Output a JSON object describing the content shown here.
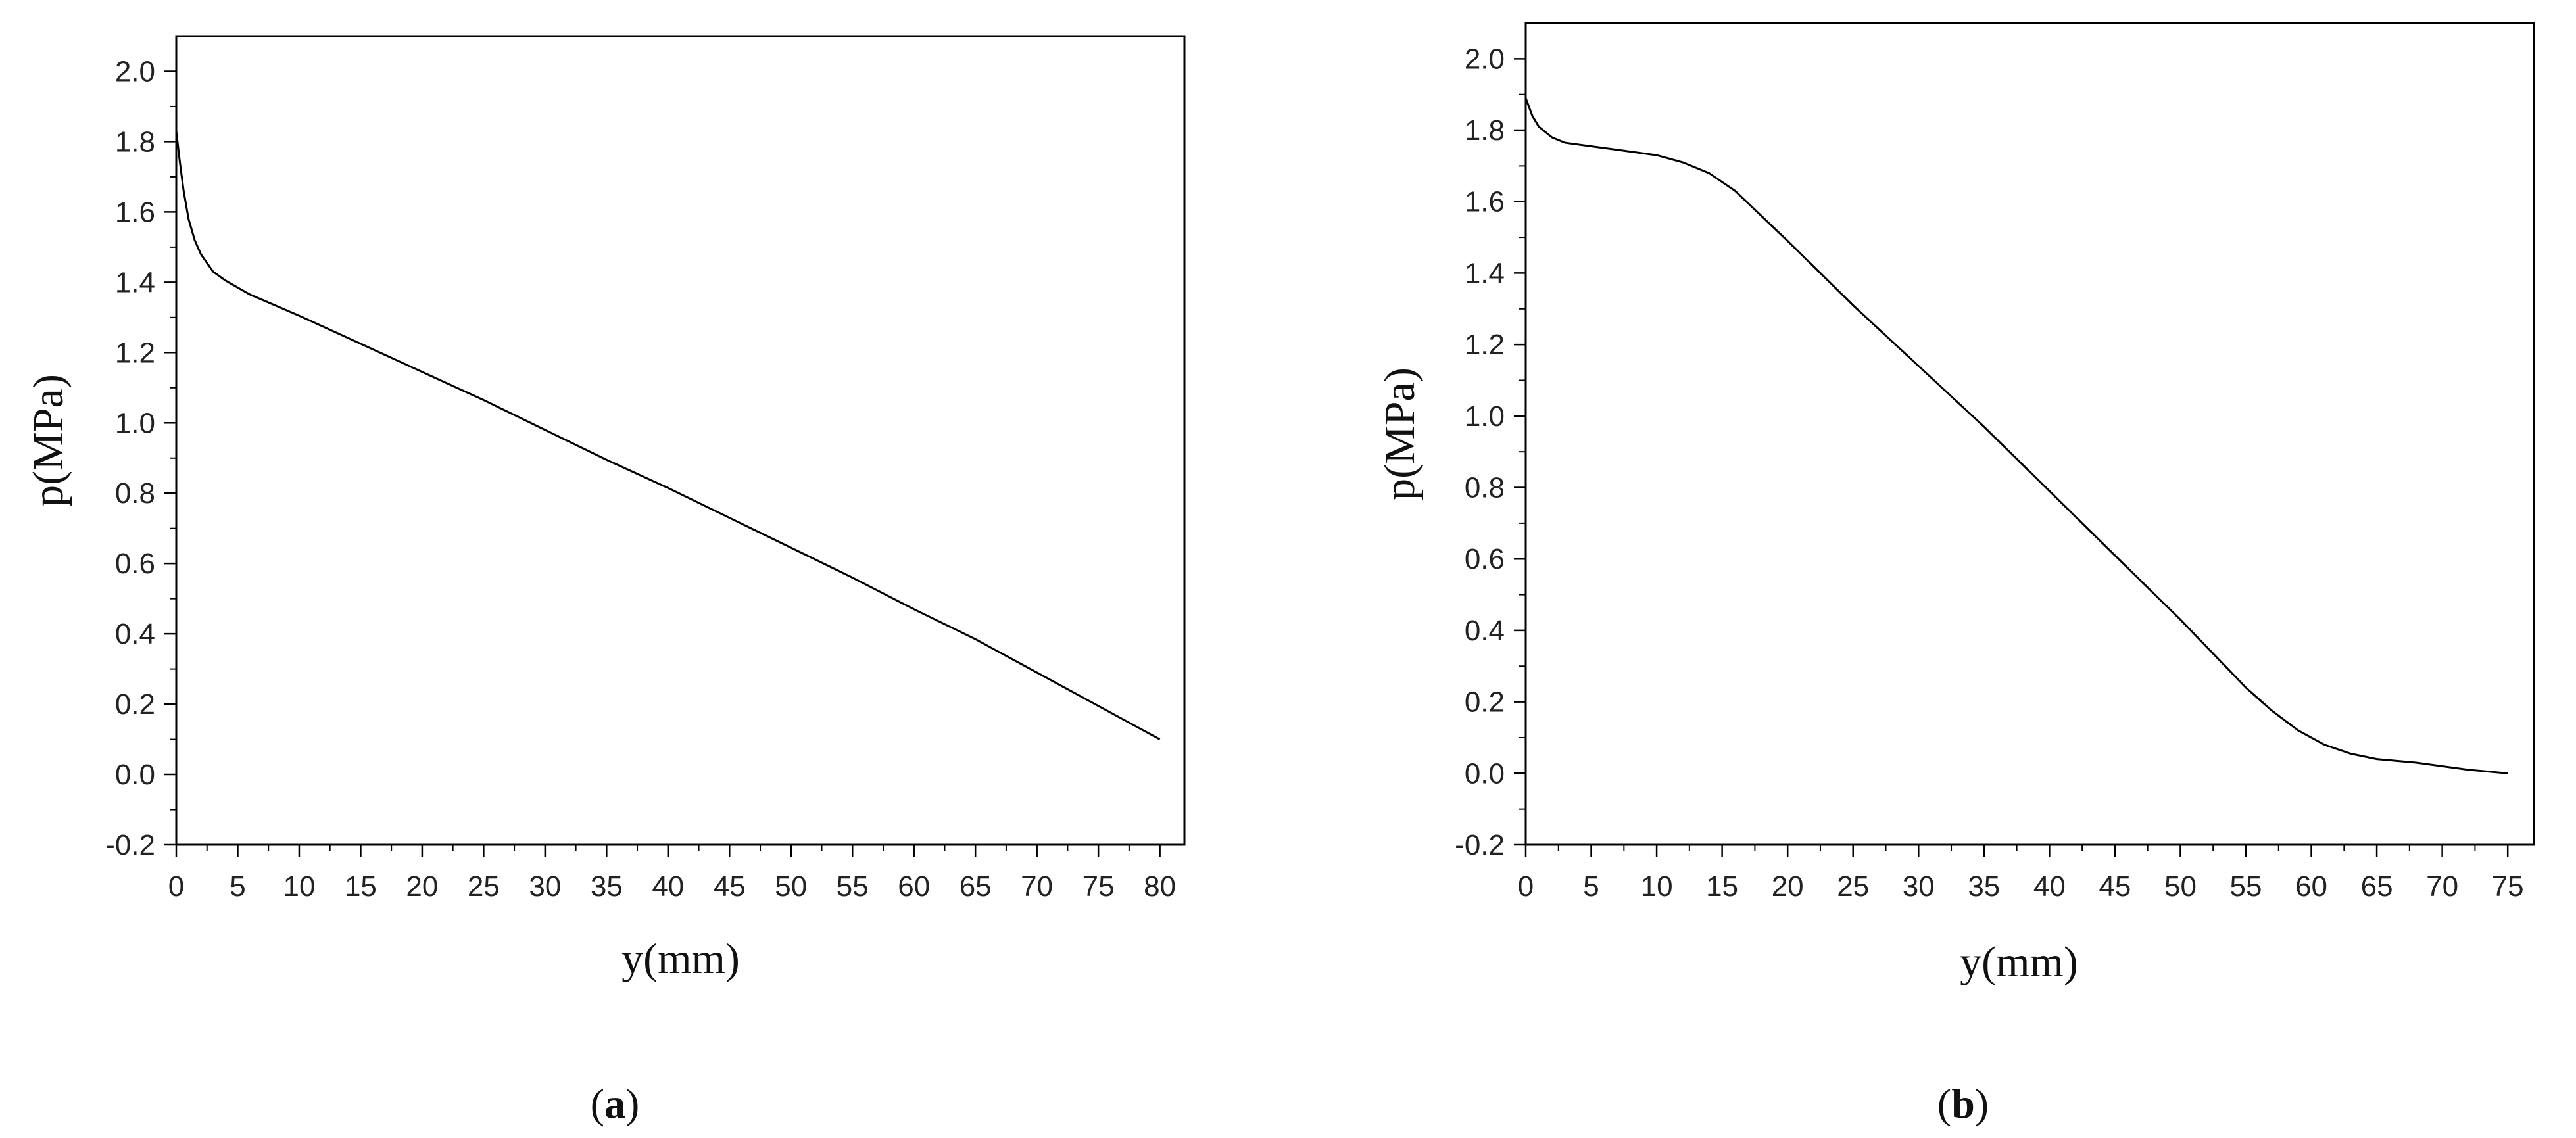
{
  "chart_data": [
    {
      "type": "line",
      "panel_label": "a",
      "xlabel": "y(mm)",
      "ylabel": "p(MPa)",
      "xlim": [
        0,
        82
      ],
      "ylim": [
        -0.2,
        2.1
      ],
      "xticks": [
        "0",
        "5",
        "10",
        "15",
        "20",
        "25",
        "30",
        "35",
        "40",
        "45",
        "50",
        "55",
        "60",
        "65",
        "70",
        "75",
        "80"
      ],
      "yticks": [
        "-0.2",
        "0.0",
        "0.2",
        "0.4",
        "0.6",
        "0.8",
        "1.0",
        "1.2",
        "1.4",
        "1.6",
        "1.8",
        "2.0"
      ],
      "grid": false,
      "series": [
        {
          "x": [
            0,
            0.3,
            0.6,
            1.0,
            1.5,
            2.0,
            3.0,
            4.0,
            5.0,
            6.0,
            8.0,
            10,
            15,
            20,
            25,
            30,
            35,
            40,
            45,
            50,
            55,
            60,
            65,
            70,
            75,
            80
          ],
          "y": [
            1.83,
            1.74,
            1.66,
            1.58,
            1.52,
            1.48,
            1.43,
            1.405,
            1.385,
            1.365,
            1.335,
            1.305,
            1.225,
            1.145,
            1.065,
            0.98,
            0.895,
            0.815,
            0.73,
            0.645,
            0.56,
            0.47,
            0.385,
            0.29,
            0.195,
            0.1
          ]
        }
      ]
    },
    {
      "type": "line",
      "panel_label": "b",
      "xlabel": "y(mm)",
      "ylabel": "p(MPa)",
      "xlim": [
        0,
        77
      ],
      "ylim": [
        -0.2,
        2.1
      ],
      "xticks": [
        "0",
        "5",
        "10",
        "15",
        "20",
        "25",
        "30",
        "35",
        "40",
        "45",
        "50",
        "55",
        "60",
        "65",
        "70",
        "75"
      ],
      "yticks": [
        "-0.2",
        "0.0",
        "0.2",
        "0.4",
        "0.6",
        "0.8",
        "1.0",
        "1.2",
        "1.4",
        "1.6",
        "1.8",
        "2.0"
      ],
      "grid": false,
      "series": [
        {
          "x": [
            0,
            0.5,
            1.0,
            2.0,
            3.0,
            5.0,
            7.0,
            10,
            12,
            14,
            16,
            18,
            20,
            25,
            30,
            35,
            40,
            45,
            50,
            55,
            57,
            59,
            61,
            63,
            65,
            68,
            72,
            75
          ],
          "y": [
            1.89,
            1.84,
            1.81,
            1.78,
            1.765,
            1.755,
            1.745,
            1.73,
            1.71,
            1.68,
            1.63,
            1.56,
            1.49,
            1.31,
            1.14,
            0.97,
            0.79,
            0.61,
            0.43,
            0.24,
            0.175,
            0.12,
            0.08,
            0.055,
            0.04,
            0.03,
            0.01,
            0.0
          ]
        }
      ]
    }
  ]
}
